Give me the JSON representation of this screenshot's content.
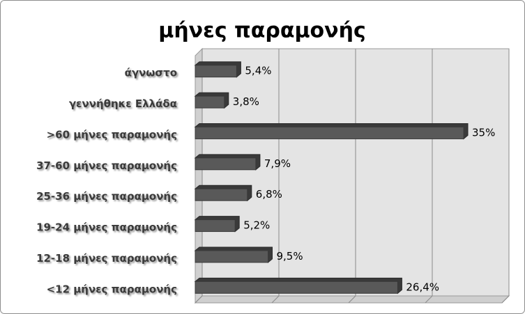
{
  "chart_data": {
    "type": "bar",
    "orientation": "horizontal",
    "title": "μήνες παραμονής",
    "categories": [
      "άγνωστο",
      "γεννήθηκε Ελλάδα",
      ">60 μήνες παραμονής",
      "37-60 μήνες παραμονής",
      "25-36 μήνες παραμονής",
      "19-24 μήνες παραμονής",
      "12-18 μήνες παραμονής",
      "<12 μήνες παραμονής"
    ],
    "values": [
      5.4,
      3.8,
      35,
      7.9,
      6.8,
      5.2,
      9.5,
      26.4
    ],
    "value_labels": [
      "5,4%",
      "3,8%",
      "35%",
      "7,9%",
      "6,8%",
      "5,2%",
      "9,5%",
      "26,4%"
    ],
    "color": "#595959",
    "xlim": [
      0,
      40
    ],
    "xticks": [
      0,
      10,
      20,
      30,
      40
    ],
    "grid": true
  }
}
